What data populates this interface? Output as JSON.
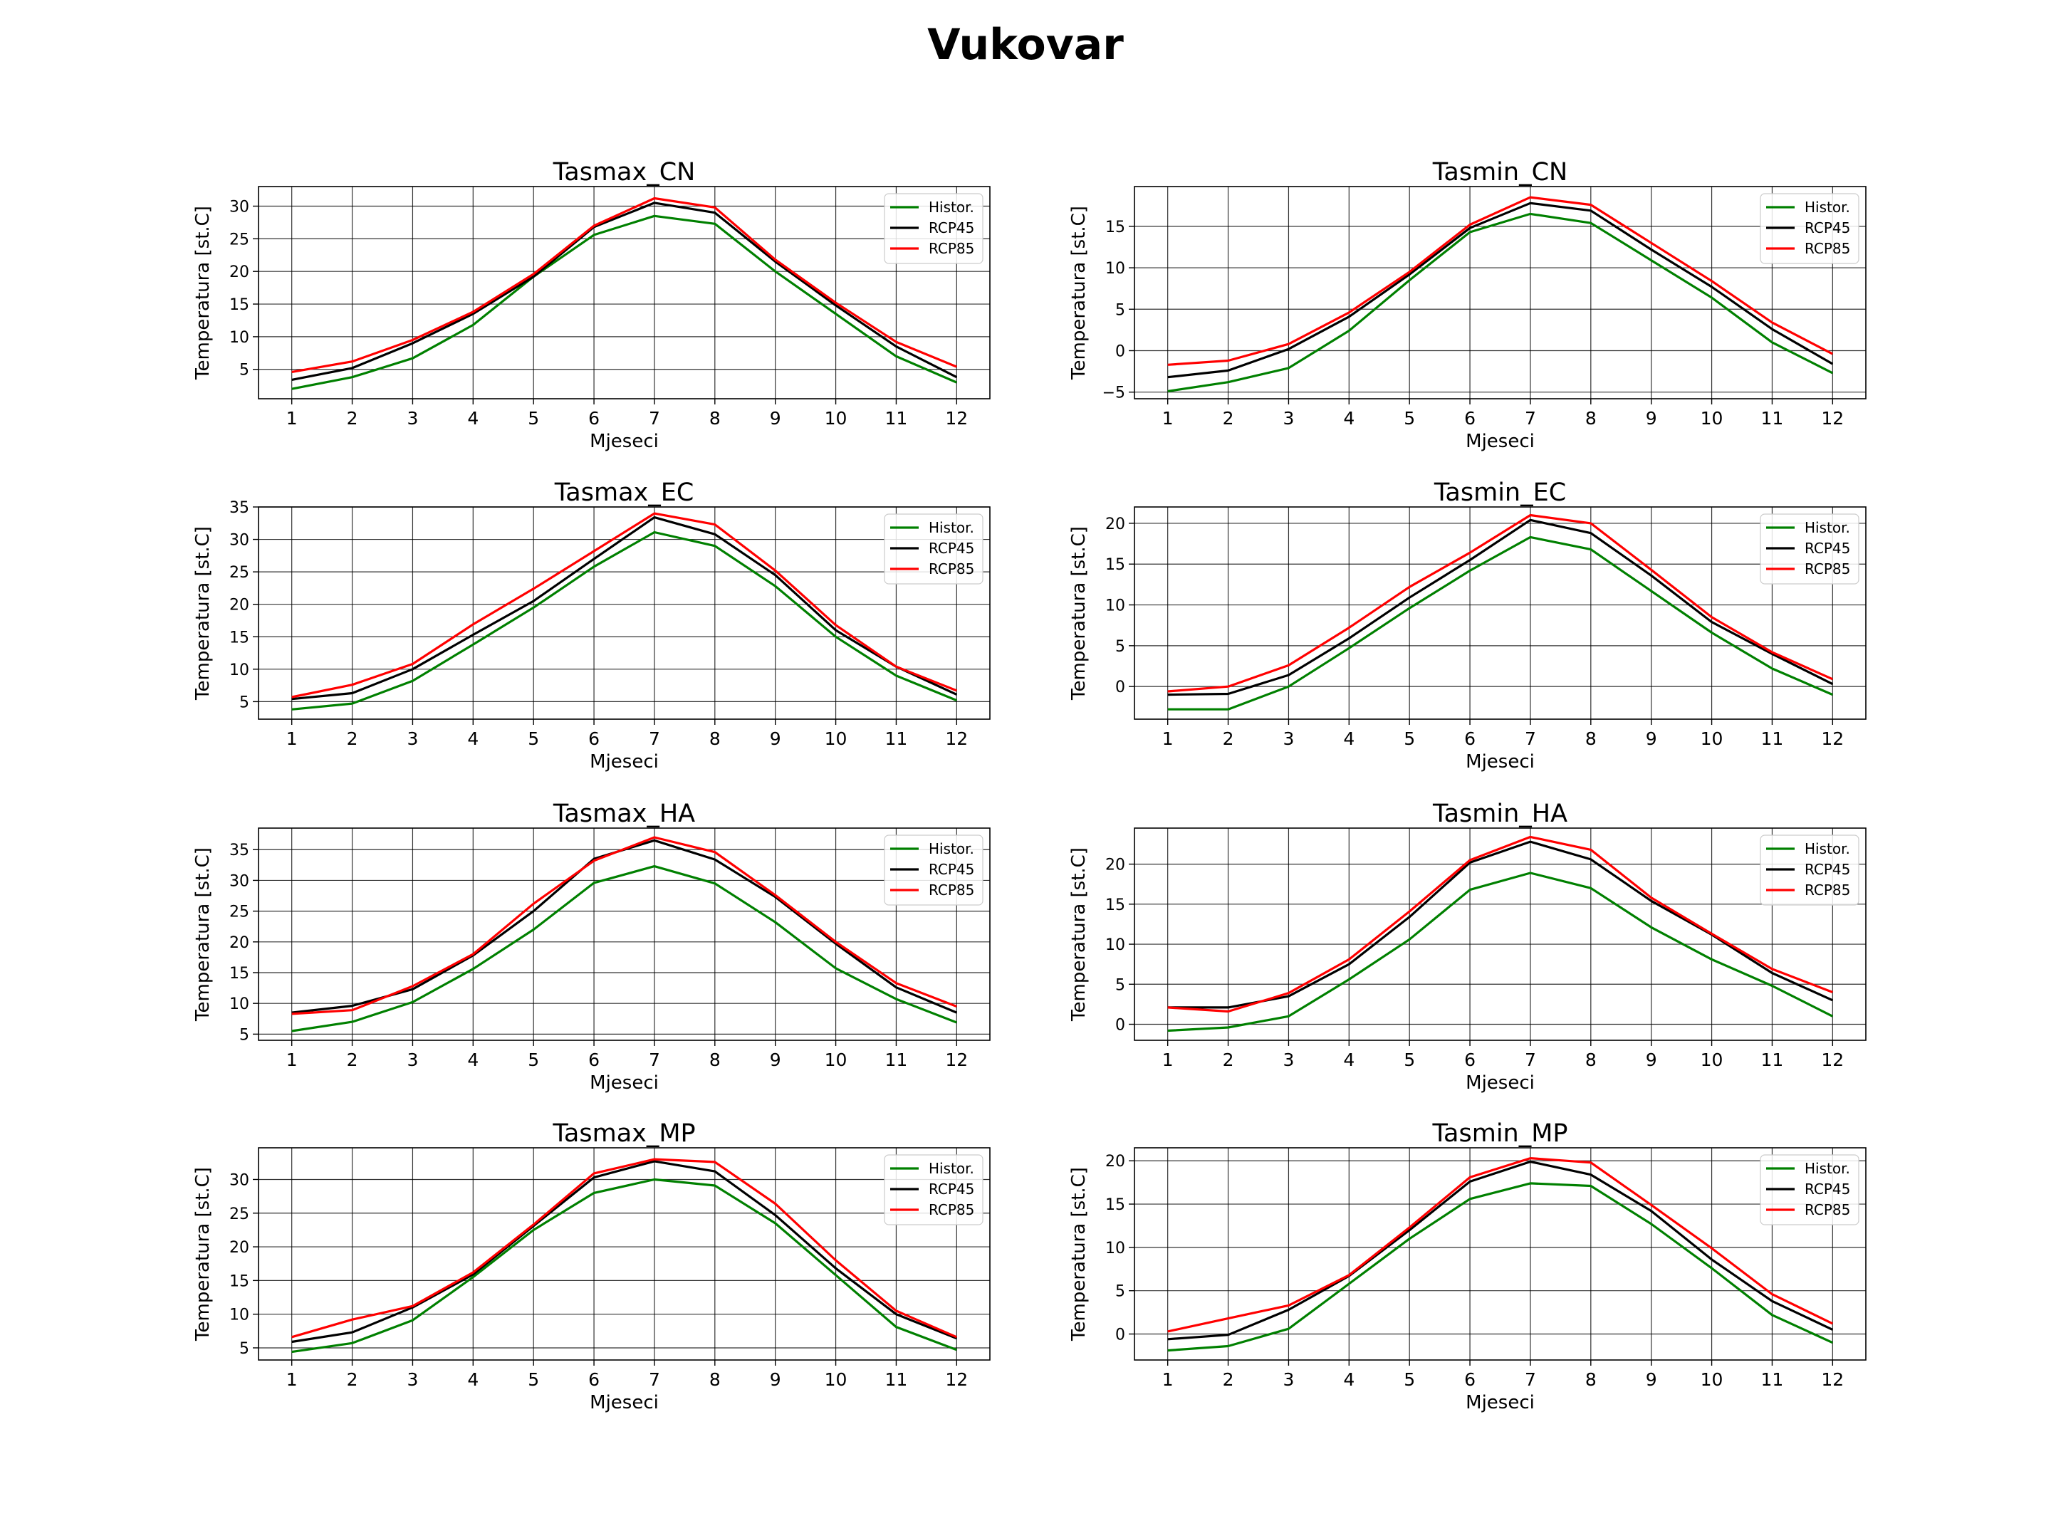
{
  "title": "Vukovar",
  "colors": {
    "histor": "#008000",
    "rcp45": "#000000",
    "rcp85": "#ff0000",
    "grid": "#000000"
  },
  "chart_data": [
    {
      "type": "line",
      "title": "Tasmax_CN",
      "xlabel": "Mjeseci",
      "ylabel": "Temperatura [st.C]",
      "x": [
        1,
        2,
        3,
        4,
        5,
        6,
        7,
        8,
        9,
        10,
        11,
        12
      ],
      "xlim": [
        0.45,
        12.55
      ],
      "ylim": [
        0.5,
        33.0
      ],
      "yticks": [
        5,
        10,
        15,
        20,
        25,
        30
      ],
      "grid": true,
      "legend": "top-right",
      "series": [
        {
          "name": "Histor.",
          "values": [
            2.0,
            3.8,
            6.7,
            11.8,
            19.2,
            25.6,
            28.5,
            27.3,
            20.0,
            13.5,
            7.0,
            3.0
          ]
        },
        {
          "name": "RCP45",
          "values": [
            3.4,
            5.2,
            9.0,
            13.5,
            19.2,
            26.8,
            30.5,
            29.0,
            21.5,
            14.8,
            8.5,
            3.8
          ]
        },
        {
          "name": "RCP85",
          "values": [
            4.6,
            6.2,
            9.5,
            13.8,
            19.6,
            27.0,
            31.2,
            29.8,
            21.8,
            15.2,
            9.2,
            5.4
          ]
        }
      ]
    },
    {
      "type": "line",
      "title": "Tasmin_CN",
      "xlabel": "Mjeseci",
      "ylabel": "Temperatura [st.C]",
      "x": [
        1,
        2,
        3,
        4,
        5,
        6,
        7,
        8,
        9,
        10,
        11,
        12
      ],
      "xlim": [
        0.45,
        12.55
      ],
      "ylim": [
        -5.8,
        19.8
      ],
      "yticks": [
        -5,
        0,
        5,
        10,
        15
      ],
      "grid": true,
      "legend": "top-right",
      "series": [
        {
          "name": "Histor.",
          "values": [
            -4.9,
            -3.8,
            -2.1,
            2.4,
            8.5,
            14.3,
            16.5,
            15.4,
            10.9,
            6.4,
            1.0,
            -2.7
          ]
        },
        {
          "name": "RCP45",
          "values": [
            -3.2,
            -2.4,
            0.2,
            4.1,
            9.2,
            14.8,
            17.8,
            16.9,
            12.2,
            7.7,
            2.6,
            -1.6
          ]
        },
        {
          "name": "RCP85",
          "values": [
            -1.7,
            -1.2,
            0.8,
            4.6,
            9.5,
            15.2,
            18.5,
            17.6,
            13.0,
            8.4,
            3.4,
            -0.4
          ]
        }
      ]
    },
    {
      "type": "line",
      "title": "Tasmax_EC",
      "xlabel": "Mjeseci",
      "ylabel": "Temperatura [st.C]",
      "x": [
        1,
        2,
        3,
        4,
        5,
        6,
        7,
        8,
        9,
        10,
        11,
        12
      ],
      "xlim": [
        0.45,
        12.55
      ],
      "ylim": [
        2.3,
        35.0
      ],
      "yticks": [
        5,
        10,
        15,
        20,
        25,
        30,
        35
      ],
      "grid": true,
      "legend": "top-right",
      "series": [
        {
          "name": "Histor.",
          "values": [
            3.8,
            4.7,
            8.2,
            13.8,
            19.5,
            25.8,
            31.1,
            29.0,
            22.8,
            15.0,
            9.0,
            5.2
          ]
        },
        {
          "name": "RCP45",
          "values": [
            5.4,
            6.3,
            10.0,
            15.3,
            20.5,
            27.0,
            33.4,
            30.8,
            24.5,
            16.0,
            10.4,
            6.1
          ]
        },
        {
          "name": "RCP85",
          "values": [
            5.7,
            7.6,
            10.8,
            16.9,
            22.4,
            28.2,
            34.0,
            32.3,
            25.2,
            16.8,
            10.4,
            6.7
          ]
        }
      ]
    },
    {
      "type": "line",
      "title": "Tasmin_EC",
      "xlabel": "Mjeseci",
      "ylabel": "Temperatura [st.C]",
      "x": [
        1,
        2,
        3,
        4,
        5,
        6,
        7,
        8,
        9,
        10,
        11,
        12
      ],
      "xlim": [
        0.45,
        12.55
      ],
      "ylim": [
        -4.0,
        22.0
      ],
      "yticks": [
        0,
        5,
        10,
        15,
        20
      ],
      "grid": true,
      "legend": "top-right",
      "series": [
        {
          "name": "Histor.",
          "values": [
            -2.8,
            -2.8,
            0.0,
            4.7,
            9.6,
            14.2,
            18.3,
            16.8,
            11.7,
            6.6,
            2.2,
            -1.0
          ]
        },
        {
          "name": "RCP45",
          "values": [
            -1.0,
            -0.9,
            1.4,
            5.9,
            10.9,
            15.5,
            20.4,
            18.8,
            13.6,
            7.9,
            4.0,
            0.3
          ]
        },
        {
          "name": "RCP85",
          "values": [
            -0.6,
            0.0,
            2.6,
            7.2,
            12.2,
            16.4,
            21.0,
            20.0,
            14.3,
            8.5,
            4.2,
            0.9
          ]
        }
      ]
    },
    {
      "type": "line",
      "title": "Tasmax_HA",
      "xlabel": "Mjeseci",
      "ylabel": "Temperatura [st.C]",
      "x": [
        1,
        2,
        3,
        4,
        5,
        6,
        7,
        8,
        9,
        10,
        11,
        12
      ],
      "xlim": [
        0.45,
        12.55
      ],
      "ylim": [
        4.0,
        38.5
      ],
      "yticks": [
        5,
        10,
        15,
        20,
        25,
        30,
        35
      ],
      "grid": true,
      "legend": "top-right",
      "series": [
        {
          "name": "Histor.",
          "values": [
            5.5,
            7.0,
            10.2,
            15.6,
            22.0,
            29.6,
            32.3,
            29.5,
            23.2,
            15.7,
            10.7,
            6.9
          ]
        },
        {
          "name": "RCP45",
          "values": [
            8.5,
            9.6,
            12.3,
            17.8,
            25.0,
            33.5,
            36.5,
            33.4,
            27.3,
            19.7,
            12.6,
            8.5
          ]
        },
        {
          "name": "RCP85",
          "values": [
            8.3,
            8.9,
            12.8,
            18.0,
            26.2,
            33.2,
            37.0,
            34.6,
            27.6,
            20.0,
            13.3,
            9.5
          ]
        }
      ]
    },
    {
      "type": "line",
      "title": "Tasmin_HA",
      "xlabel": "Mjeseci",
      "ylabel": "Temperatura [st.C]",
      "x": [
        1,
        2,
        3,
        4,
        5,
        6,
        7,
        8,
        9,
        10,
        11,
        12
      ],
      "xlim": [
        0.45,
        12.55
      ],
      "ylim": [
        -2.0,
        24.5
      ],
      "yticks": [
        0,
        5,
        10,
        15,
        20
      ],
      "grid": true,
      "legend": "top-right",
      "series": [
        {
          "name": "Histor.",
          "values": [
            -0.8,
            -0.4,
            1.0,
            5.6,
            10.6,
            16.8,
            18.9,
            17.0,
            12.1,
            8.1,
            4.8,
            1.0
          ]
        },
        {
          "name": "RCP45",
          "values": [
            2.1,
            2.1,
            3.5,
            7.5,
            13.4,
            20.2,
            22.8,
            20.6,
            15.4,
            11.2,
            6.4,
            3.0
          ]
        },
        {
          "name": "RCP85",
          "values": [
            2.1,
            1.6,
            3.9,
            8.1,
            14.1,
            20.5,
            23.4,
            21.8,
            15.8,
            11.3,
            6.9,
            4.0
          ]
        }
      ]
    },
    {
      "type": "line",
      "title": "Tasmax_MP",
      "xlabel": "Mjeseci",
      "ylabel": "Temperatura [st.C]",
      "x": [
        1,
        2,
        3,
        4,
        5,
        6,
        7,
        8,
        9,
        10,
        11,
        12
      ],
      "xlim": [
        0.45,
        12.55
      ],
      "ylim": [
        3.2,
        34.7
      ],
      "yticks": [
        5,
        10,
        15,
        20,
        25,
        30
      ],
      "grid": true,
      "legend": "top-right",
      "series": [
        {
          "name": "Histor.",
          "values": [
            4.4,
            5.7,
            9.1,
            15.5,
            22.5,
            28.0,
            30.0,
            29.1,
            23.5,
            15.8,
            8.1,
            4.7
          ]
        },
        {
          "name": "RCP45",
          "values": [
            5.9,
            7.3,
            11.0,
            15.9,
            23.1,
            30.3,
            32.7,
            31.2,
            24.7,
            16.8,
            10.0,
            6.4
          ]
        },
        {
          "name": "RCP85",
          "values": [
            6.6,
            9.2,
            11.2,
            16.2,
            23.3,
            30.9,
            33.0,
            32.6,
            26.4,
            18.0,
            10.5,
            6.6
          ]
        }
      ]
    },
    {
      "type": "line",
      "title": "Tasmin_MP",
      "xlabel": "Mjeseci",
      "ylabel": "Temperatura [st.C]",
      "x": [
        1,
        2,
        3,
        4,
        5,
        6,
        7,
        8,
        9,
        10,
        11,
        12
      ],
      "xlim": [
        0.45,
        12.55
      ],
      "ylim": [
        -3.0,
        21.5
      ],
      "yticks": [
        0,
        5,
        10,
        15,
        20
      ],
      "grid": true,
      "legend": "top-right",
      "series": [
        {
          "name": "Histor.",
          "values": [
            -1.9,
            -1.4,
            0.6,
            5.8,
            11.0,
            15.6,
            17.4,
            17.1,
            12.7,
            7.6,
            2.2,
            -1.0
          ]
        },
        {
          "name": "RCP45",
          "values": [
            -0.6,
            -0.1,
            2.8,
            6.7,
            12.0,
            17.6,
            19.9,
            18.4,
            14.2,
            8.6,
            3.8,
            0.5
          ]
        },
        {
          "name": "RCP85",
          "values": [
            0.3,
            1.8,
            3.3,
            6.8,
            12.3,
            18.1,
            20.3,
            19.8,
            14.9,
            9.9,
            4.6,
            1.2
          ]
        }
      ]
    }
  ]
}
